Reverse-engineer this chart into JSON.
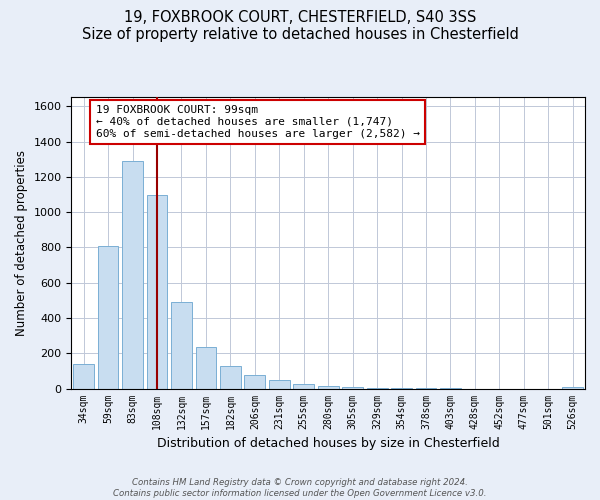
{
  "title": "19, FOXBROOK COURT, CHESTERFIELD, S40 3SS",
  "subtitle": "Size of property relative to detached houses in Chesterfield",
  "xlabel": "Distribution of detached houses by size in Chesterfield",
  "ylabel": "Number of detached properties",
  "bar_labels": [
    "34sqm",
    "59sqm",
    "83sqm",
    "108sqm",
    "132sqm",
    "157sqm",
    "182sqm",
    "206sqm",
    "231sqm",
    "255sqm",
    "280sqm",
    "305sqm",
    "329sqm",
    "354sqm",
    "378sqm",
    "403sqm",
    "428sqm",
    "452sqm",
    "477sqm",
    "501sqm",
    "526sqm"
  ],
  "bar_values": [
    140,
    810,
    1290,
    1095,
    490,
    235,
    130,
    75,
    50,
    28,
    15,
    8,
    3,
    2,
    1,
    1,
    0,
    0,
    0,
    0,
    8
  ],
  "bar_color": "#c8ddf0",
  "bar_edge_color": "#7aafd4",
  "vline_color": "#990000",
  "annotation_line1": "19 FOXBROOK COURT: 99sqm",
  "annotation_line2": "← 40% of detached houses are smaller (1,747)",
  "annotation_line3": "60% of semi-detached houses are larger (2,582) →",
  "annotation_box_color": "#ffffff",
  "annotation_box_edge": "#cc0000",
  "ylim": [
    0,
    1650
  ],
  "yticks": [
    0,
    200,
    400,
    600,
    800,
    1000,
    1200,
    1400,
    1600
  ],
  "footer_line1": "Contains HM Land Registry data © Crown copyright and database right 2024.",
  "footer_line2": "Contains public sector information licensed under the Open Government Licence v3.0.",
  "bg_color": "#e8eef8",
  "plot_bg_color": "#ffffff",
  "grid_color": "#c0c8d8",
  "title_fontsize": 10.5,
  "subtitle_fontsize": 9.5
}
